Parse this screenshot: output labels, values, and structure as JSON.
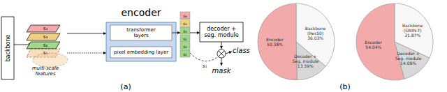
{
  "chart_data": [
    {
      "type": "diagram",
      "annotations": [
        "backbone",
        "s₄",
        "s₃",
        "s₂",
        "s₁",
        "multi-scale\nfeatures",
        "encoder",
        "transformer\nlayers",
        "pixel embedding layer",
        "s₄",
        "s₃",
        "s₃",
        "s₂",
        "s₂",
        "s₂",
        "decoder +\nseg. module",
        "class",
        "mask",
        "s₁",
        "(a)"
      ],
      "colors": [
        "#F4AAAA",
        "#F0D080",
        "#A0D888",
        "#F4C890",
        "#F4AAAA",
        "#F0D080",
        "#A0D888",
        "#A0D888",
        "#A0D888",
        "#A0D888"
      ],
      "color": "#C8D8F0"
    },
    {
      "type": "pie",
      "title": "(b)",
      "categories": [
        "Backbone\n(Res50)",
        "Decoder +\nSeg. module",
        "Encoder"
      ],
      "values": [
        36.03,
        13.59,
        50.38
      ],
      "value_labels": [
        "36.03%",
        "13.59%",
        "50.38%"
      ],
      "colors": [
        "#F8F8F8",
        "#D8D8D8",
        "#F2AAAA"
      ],
      "data_labels": true
    },
    {
      "type": "pie",
      "categories": [
        "Backbone\n(SWIN-T)",
        "Decoder +\nSeg. module",
        "Encoder"
      ],
      "values": [
        31.87,
        14.09,
        54.04
      ],
      "value_labels": [
        "31.87%",
        "14.09%",
        "54.04%"
      ],
      "colors": [
        "#F8F8F8",
        "#D8D8D8",
        "#F2AAAA"
      ],
      "data_labels": true
    }
  ]
}
